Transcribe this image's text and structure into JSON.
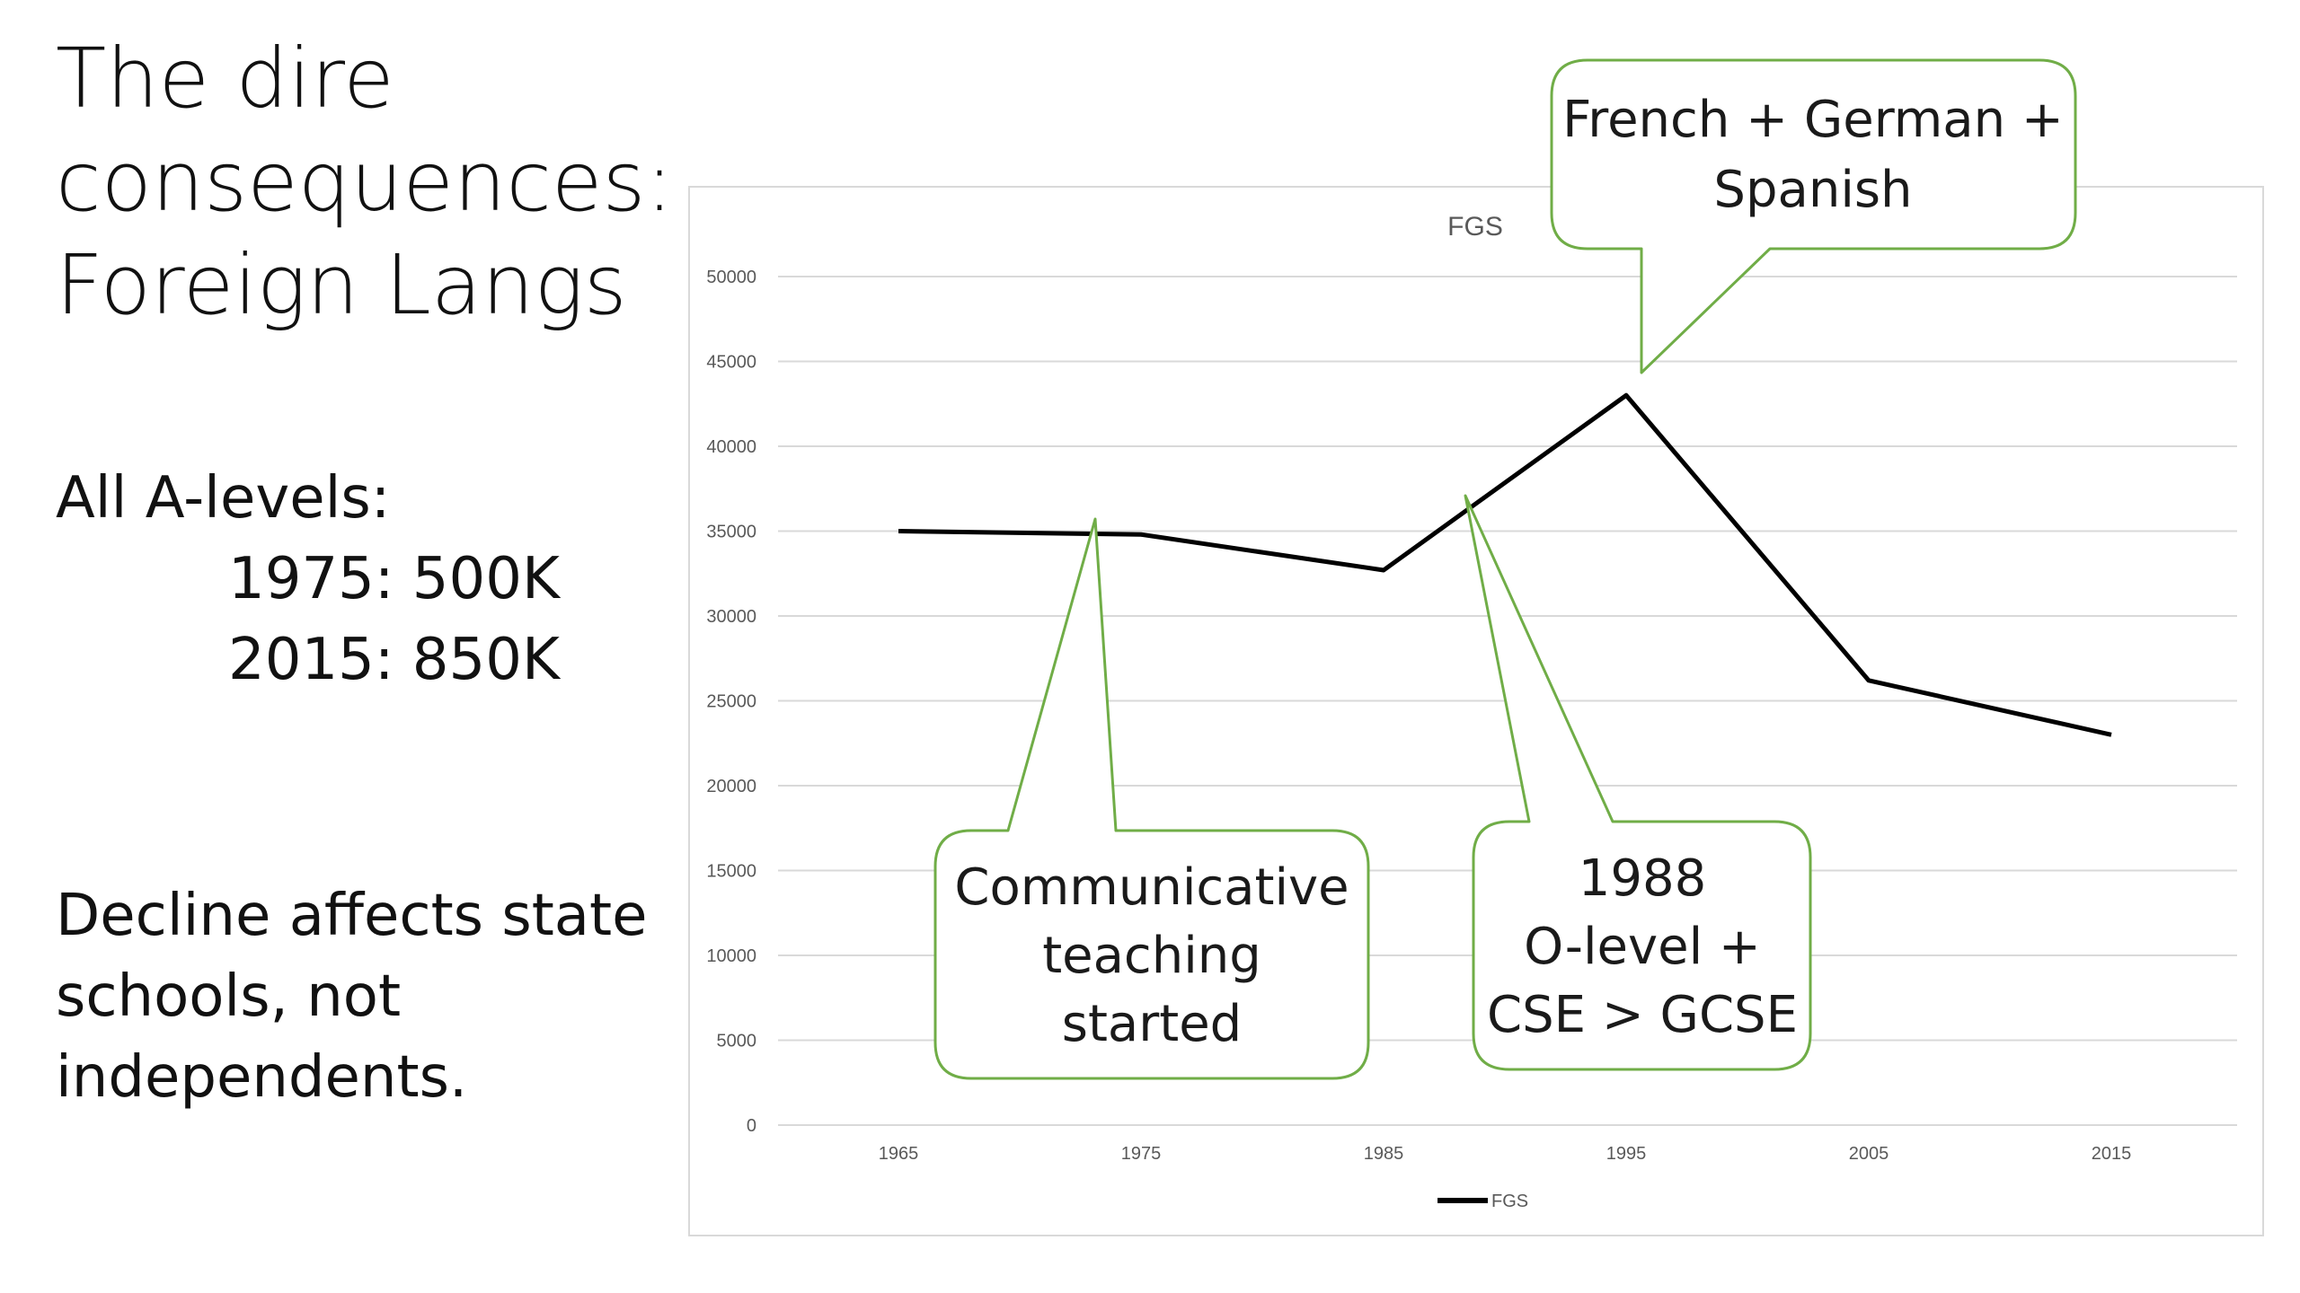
{
  "slide": {
    "title_lines": [
      "The dire",
      "consequences:",
      "Foreign Langs"
    ],
    "alevels_heading": "All A-levels:",
    "alevels_1975": "1975: 500K",
    "alevels_2015": "2015: 850K",
    "decline_lines": [
      "Decline affects state",
      "schools, not",
      "independents."
    ]
  },
  "chart_data": {
    "type": "line",
    "title": "FGS",
    "x": [
      "1965",
      "1975",
      "1985",
      "1995",
      "2005",
      "2015"
    ],
    "series": [
      {
        "name": "FGS",
        "values": [
          35000,
          34800,
          32700,
          43000,
          26200,
          23000
        ],
        "color": "#000000"
      }
    ],
    "ylim": [
      0,
      50000
    ],
    "yticks": [
      0,
      5000,
      10000,
      15000,
      20000,
      25000,
      30000,
      35000,
      40000,
      45000,
      50000
    ],
    "grid": true,
    "legend": "bottom",
    "annotations": [
      {
        "lines": [
          "French + German +",
          "Spanish"
        ]
      },
      {
        "lines": [
          "Communicative",
          "teaching",
          "started"
        ]
      },
      {
        "lines": [
          "1988",
          "O-level +",
          "CSE > GCSE"
        ]
      }
    ]
  },
  "colors": {
    "callout_border": "#70ad47",
    "gridline": "#d9d9d9",
    "line": "#000000",
    "tick_text": "#595959"
  }
}
